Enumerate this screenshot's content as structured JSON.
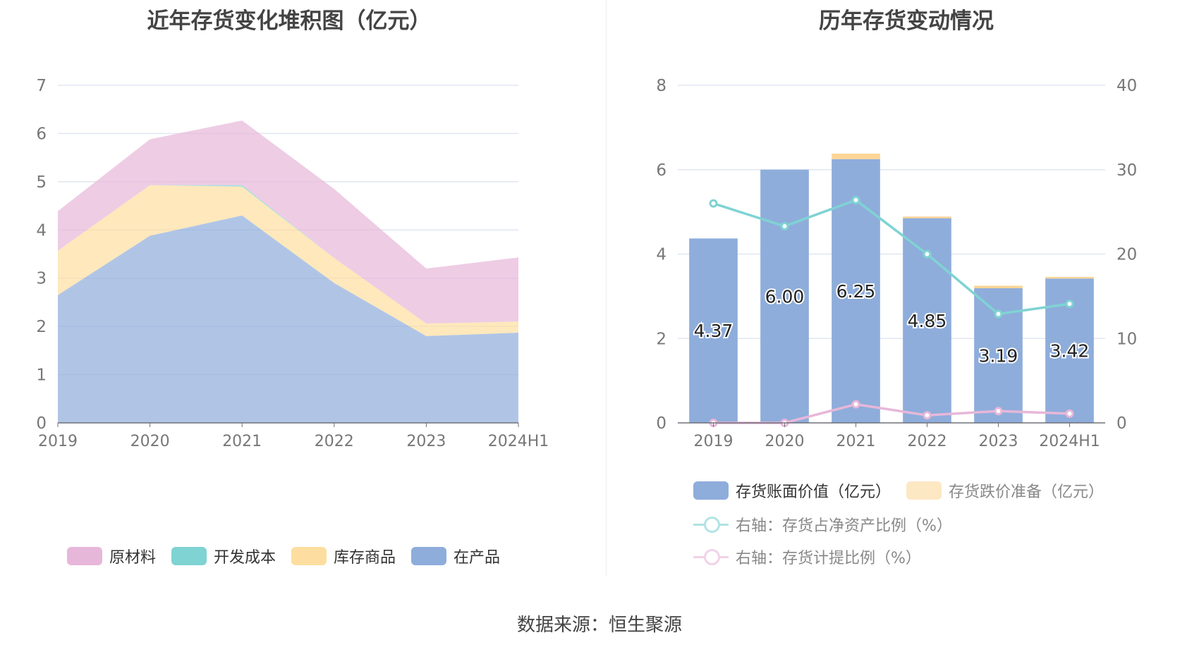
{
  "chart_data": [
    {
      "type": "area",
      "stacked": true,
      "title": "近年存货变化堆积图（亿元）",
      "categories": [
        "2019",
        "2020",
        "2021",
        "2022",
        "2023",
        "2024H1"
      ],
      "ylim": [
        0,
        7
      ],
      "yticks": [
        "0",
        "1",
        "2",
        "3",
        "4",
        "5",
        "6",
        "7"
      ],
      "grid": true,
      "legend_position": "bottom",
      "series": [
        {
          "name": "在产品",
          "color": "#8eaddb",
          "values": [
            2.65,
            3.88,
            4.3,
            2.9,
            1.8,
            1.87
          ]
        },
        {
          "name": "库存商品",
          "color": "#fddea0",
          "values": [
            0.92,
            1.05,
            0.6,
            0.52,
            0.26,
            0.23
          ]
        },
        {
          "name": "开发成本",
          "color": "#7fd3d3",
          "values": [
            0,
            0,
            0.03,
            0,
            0,
            0
          ]
        },
        {
          "name": "原材料",
          "color": "#e7b7d9",
          "values": [
            0.82,
            0.95,
            1.34,
            1.43,
            1.14,
            1.33
          ]
        }
      ],
      "legend_order": [
        "原材料",
        "开发成本",
        "库存商品",
        "在产品"
      ]
    },
    {
      "type": "bar+line",
      "title": "历年存货变动情况",
      "categories": [
        "2019",
        "2020",
        "2021",
        "2022",
        "2023",
        "2024H1"
      ],
      "ylim_left": [
        0,
        8
      ],
      "yticks_left": [
        "0",
        "2",
        "4",
        "6",
        "8"
      ],
      "ylim_right": [
        0,
        40
      ],
      "yticks_right": [
        "0",
        "10",
        "20",
        "30",
        "40"
      ],
      "grid": true,
      "legend_position": "bottom",
      "bars": [
        {
          "name": "存货账面价值（亿元）",
          "color": "#8eaddb",
          "values": [
            4.37,
            6.0,
            6.25,
            4.85,
            3.19,
            3.42
          ],
          "labels": [
            "4.37",
            "6.00",
            "6.25",
            "4.85",
            "3.19",
            "3.42"
          ]
        },
        {
          "name": "存货跌价准备（亿元）",
          "color": "#fdd596",
          "values": [
            0,
            0,
            0.13,
            0.04,
            0.06,
            0.04
          ]
        }
      ],
      "lines": [
        {
          "name": "右轴：存货占净资产比例（%）",
          "color": "#7fd3d3",
          "values": [
            26.0,
            23.3,
            26.4,
            20.0,
            12.9,
            14.1
          ]
        },
        {
          "name": "右轴：存货计提比例（%）",
          "color": "#e7b7d9",
          "values": [
            0,
            0,
            2.2,
            0.9,
            1.4,
            1.1
          ]
        }
      ]
    }
  ],
  "source": "数据来源：恒生聚源"
}
